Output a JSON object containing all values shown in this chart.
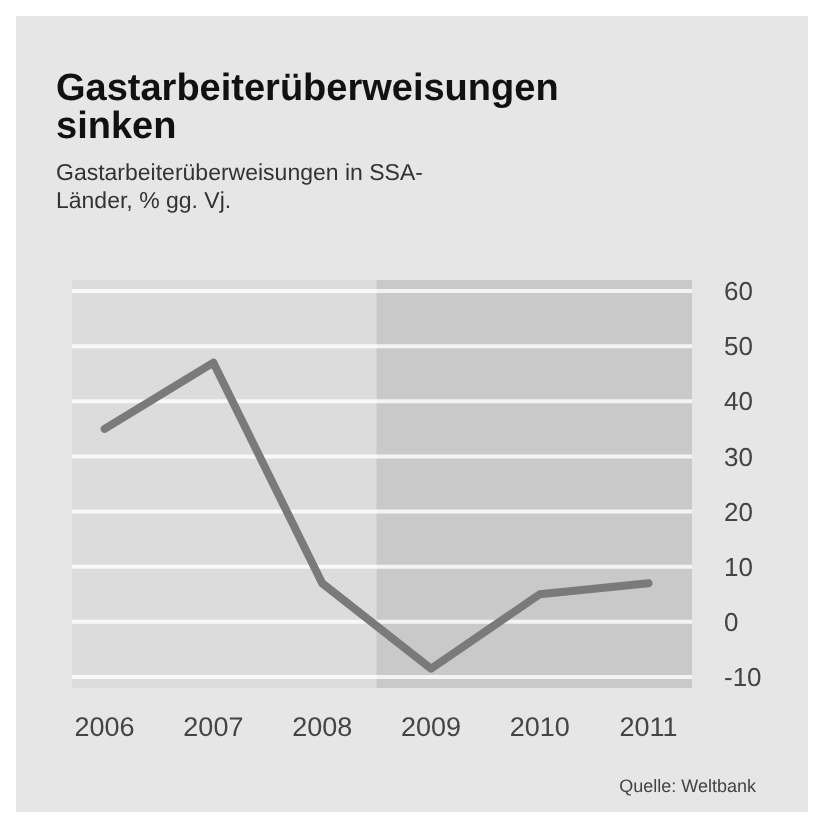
{
  "chart_data": {
    "type": "line",
    "title": "Gastarbeiterüberweisungen sinken",
    "subtitle": "Gastarbeiterüberweisungen in SSA-Länder, % gg. Vj.",
    "x": [
      2006,
      2007,
      2008,
      2009,
      2010,
      2011
    ],
    "series": [
      {
        "color": "#7a7a7a",
        "values": [
          35,
          47,
          7,
          -8.5,
          5,
          7
        ]
      }
    ],
    "xlim": [
      2005.7,
      2011.4
    ],
    "xticks": [
      2006,
      2007,
      2008,
      2009,
      2010,
      2011
    ],
    "ylim": [
      -12,
      62
    ],
    "yticks": [
      -10,
      0,
      10,
      20,
      30,
      40,
      50,
      60
    ],
    "grid": "y",
    "bands": [
      {
        "axis": "x",
        "from": 2008.5,
        "to": 2011.4,
        "color": "#c9c9c9"
      }
    ],
    "annotations": [
      "Quelle: Weltbank"
    ]
  }
}
